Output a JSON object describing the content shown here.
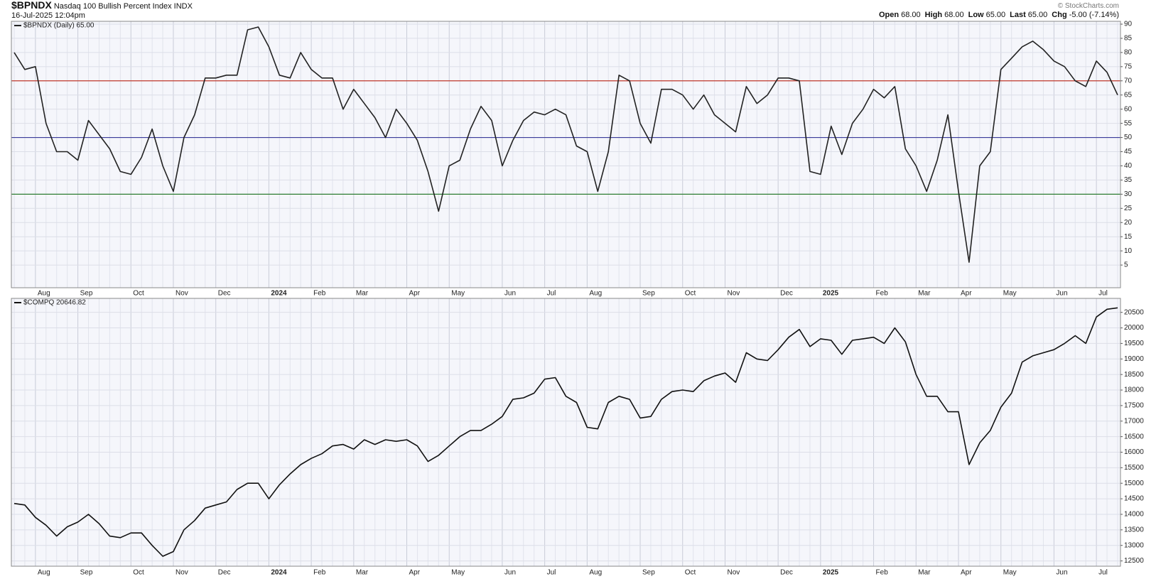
{
  "header": {
    "symbol": "$BPNDX",
    "name": "Nasdaq 100 Bullish Percent Index",
    "exchange": "INDX",
    "timestamp": "16-Jul-2025 12:04pm",
    "credit": "© StockCharts.com",
    "quote": [
      [
        "Open",
        "68.00"
      ],
      [
        "High",
        "68.00"
      ],
      [
        "Low",
        "65.00"
      ],
      [
        "Last",
        "65.00"
      ],
      [
        "Chg",
        "-5.00 (-7.14%)"
      ]
    ]
  },
  "chart_data": [
    {
      "type": "line",
      "categories": [
        null,
        null,
        "Aug",
        null,
        null,
        null,
        "Sep",
        null,
        null,
        null,
        null,
        "Oct",
        null,
        null,
        null,
        "Nov",
        null,
        null,
        null,
        "Dec",
        null,
        null,
        null,
        null,
        "2024",
        null,
        null,
        null,
        "Feb",
        null,
        null,
        null,
        "Mar",
        null,
        null,
        null,
        null,
        "Apr",
        null,
        null,
        null,
        "May",
        null,
        null,
        null,
        null,
        "Jun",
        null,
        null,
        null,
        "Jul",
        null,
        null,
        null,
        "Aug",
        null,
        null,
        null,
        null,
        "Sep",
        null,
        null,
        null,
        "Oct",
        null,
        null,
        null,
        "Nov",
        null,
        null,
        null,
        null,
        "Dec",
        null,
        null,
        null,
        "2025",
        null,
        null,
        null,
        null,
        "Feb",
        null,
        null,
        null,
        "Mar",
        null,
        null,
        null,
        "Apr",
        null,
        null,
        null,
        "May",
        null,
        null,
        null,
        null,
        "Jun",
        null,
        null,
        null,
        "Jul",
        null,
        null
      ],
      "series": [
        {
          "name": "$BPNDX (Daily) 65.00",
          "color": "#222222",
          "values": [
            80,
            74,
            75,
            55,
            45,
            45,
            42,
            56,
            51,
            46,
            38,
            37,
            43,
            53,
            40,
            31,
            50,
            58,
            71,
            71,
            72,
            72,
            88,
            89,
            82,
            72,
            71,
            80,
            74,
            71,
            71,
            60,
            67,
            62,
            57,
            50,
            60,
            55,
            49,
            38,
            24,
            40,
            42,
            53,
            61,
            56,
            40,
            49,
            56,
            59,
            58,
            60,
            58,
            47,
            45,
            31,
            45,
            72,
            70,
            55,
            48,
            67,
            67,
            65,
            60,
            65,
            58,
            55,
            52,
            68,
            62,
            65,
            71,
            71,
            70,
            38,
            37,
            54,
            44,
            55,
            60,
            67,
            64,
            68,
            46,
            40,
            31,
            42,
            58,
            31,
            6,
            40,
            45,
            74,
            78,
            82,
            84,
            81,
            77,
            75,
            70,
            68,
            77,
            73,
            65
          ]
        }
      ],
      "hlines": [
        {
          "value": 70,
          "color": "#c0392b"
        },
        {
          "value": 50,
          "color": "#3b3b9a"
        },
        {
          "value": 30,
          "color": "#2e7d32"
        }
      ],
      "ylim": [
        -3,
        91
      ],
      "yticks": [
        5,
        10,
        15,
        20,
        25,
        30,
        35,
        40,
        45,
        50,
        55,
        60,
        65,
        70,
        75,
        80,
        85,
        90
      ],
      "grid": true
    },
    {
      "type": "line",
      "categories": [
        null,
        null,
        "Aug",
        null,
        null,
        null,
        "Sep",
        null,
        null,
        null,
        null,
        "Oct",
        null,
        null,
        null,
        "Nov",
        null,
        null,
        null,
        "Dec",
        null,
        null,
        null,
        null,
        "2024",
        null,
        null,
        null,
        "Feb",
        null,
        null,
        null,
        "Mar",
        null,
        null,
        null,
        null,
        "Apr",
        null,
        null,
        null,
        "May",
        null,
        null,
        null,
        null,
        "Jun",
        null,
        null,
        null,
        "Jul",
        null,
        null,
        null,
        "Aug",
        null,
        null,
        null,
        null,
        "Sep",
        null,
        null,
        null,
        "Oct",
        null,
        null,
        null,
        "Nov",
        null,
        null,
        null,
        null,
        "Dec",
        null,
        null,
        null,
        "2025",
        null,
        null,
        null,
        null,
        "Feb",
        null,
        null,
        null,
        "Mar",
        null,
        null,
        null,
        "Apr",
        null,
        null,
        null,
        "May",
        null,
        null,
        null,
        null,
        "Jun",
        null,
        null,
        null,
        "Jul",
        null,
        null
      ],
      "series": [
        {
          "name": "$COMPQ 20646.82",
          "color": "#111111",
          "values": [
            14350,
            14300,
            13900,
            13650,
            13300,
            13600,
            13750,
            14000,
            13700,
            13300,
            13250,
            13400,
            13400,
            13000,
            12650,
            12800,
            13500,
            13800,
            14200,
            14300,
            14400,
            14800,
            15000,
            15000,
            14500,
            14950,
            15300,
            15600,
            15800,
            15950,
            16200,
            16250,
            16100,
            16400,
            16250,
            16400,
            16350,
            16400,
            16200,
            15700,
            15900,
            16200,
            16500,
            16700,
            16700,
            16900,
            17150,
            17700,
            17750,
            17900,
            18350,
            18400,
            17800,
            17600,
            16800,
            16750,
            17600,
            17800,
            17700,
            17100,
            17150,
            17700,
            17950,
            18000,
            17950,
            18300,
            18450,
            18550,
            18250,
            19200,
            19000,
            18950,
            19300,
            19700,
            19950,
            19400,
            19650,
            19600,
            19150,
            19600,
            19650,
            19700,
            19500,
            20000,
            19550,
            18500,
            17800,
            17800,
            17300,
            17300,
            15600,
            16300,
            16700,
            17450,
            17900,
            18900,
            19100,
            19200,
            19300,
            19500,
            19750,
            19500,
            20350,
            20600,
            20646.82
          ]
        }
      ],
      "ylim": [
        12330,
        20950
      ],
      "yticks": [
        12500,
        13000,
        13500,
        14000,
        14500,
        15000,
        15500,
        16000,
        16500,
        17000,
        17500,
        18000,
        18500,
        19000,
        19500,
        20000,
        20500
      ],
      "grid": true
    }
  ]
}
